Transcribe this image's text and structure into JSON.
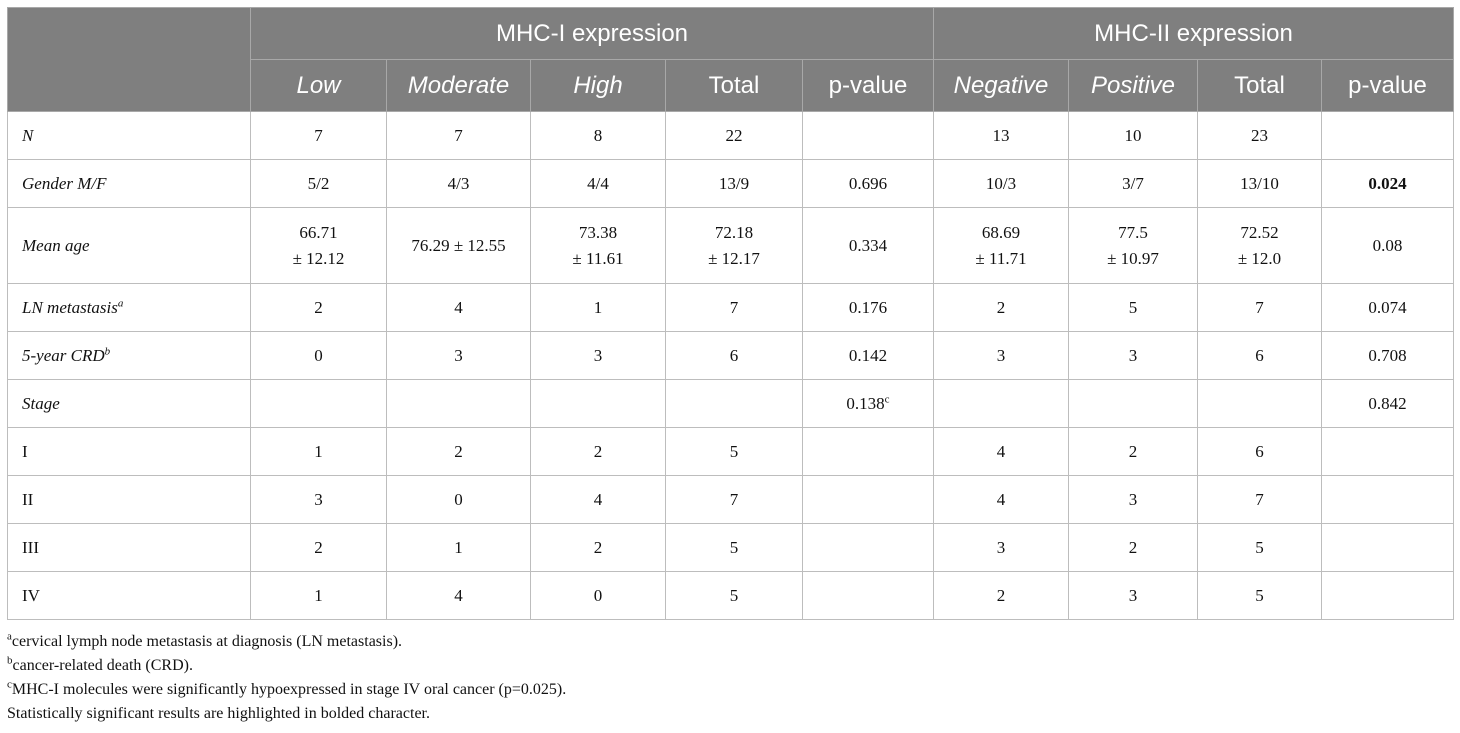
{
  "header": {
    "group1": "MHC-I expression",
    "group2": "MHC-II expression",
    "sub": [
      "Low",
      "Moderate",
      "High",
      "Total",
      "p-value",
      "Negative",
      "Positive",
      "Total",
      "p-value"
    ]
  },
  "rows": [
    {
      "label": "N",
      "sup": "",
      "italic": true,
      "cells": [
        "7",
        "7",
        "8",
        "22",
        "",
        "13",
        "10",
        "23",
        ""
      ]
    },
    {
      "label": "Gender M/F",
      "sup": "",
      "italic": true,
      "cells": [
        "5/2",
        "4/3",
        "4/4",
        "13/9",
        "0.696",
        "10/3",
        "3/7",
        "13/10",
        "0.024"
      ]
    },
    {
      "label": "Mean age",
      "sup": "",
      "italic": true,
      "cells_line1": [
        "66.71",
        "76.29 ± 12.55",
        "73.38",
        "72.18",
        "0.334",
        "68.69",
        "77.5",
        "72.52",
        "0.08"
      ],
      "cells_line2": [
        "± 12.12",
        "",
        "± 11.61",
        "± 12.17",
        "",
        "± 11.71",
        "± 10.97",
        "± 12.0",
        ""
      ]
    },
    {
      "label": "LN metastasis",
      "sup": "a",
      "italic": true,
      "cells": [
        "2",
        "4",
        "1",
        "7",
        "0.176",
        "2",
        "5",
        "7",
        "0.074"
      ]
    },
    {
      "label": "5-year CRD",
      "sup": "b",
      "italic": true,
      "cells": [
        "0",
        "3",
        "3",
        "6",
        "0.142",
        "3",
        "3",
        "6",
        "0.708"
      ]
    },
    {
      "label": "Stage",
      "sup": "",
      "italic": true,
      "cells": [
        "",
        "",
        "",
        "",
        "0.138",
        "",
        "",
        "",
        "0.842"
      ],
      "pval1_sup": "c"
    },
    {
      "label": "I",
      "sup": "",
      "italic": false,
      "cells": [
        "1",
        "2",
        "2",
        "5",
        "",
        "4",
        "2",
        "6",
        ""
      ]
    },
    {
      "label": "II",
      "sup": "",
      "italic": false,
      "cells": [
        "3",
        "0",
        "4",
        "7",
        "",
        "4",
        "3",
        "7",
        ""
      ]
    },
    {
      "label": "III",
      "sup": "",
      "italic": false,
      "cells": [
        "2",
        "1",
        "2",
        "5",
        "",
        "3",
        "2",
        "5",
        ""
      ]
    },
    {
      "label": "IV",
      "sup": "",
      "italic": false,
      "cells": [
        "1",
        "4",
        "0",
        "5",
        "",
        "2",
        "3",
        "5",
        ""
      ]
    }
  ],
  "notes": [
    {
      "sup": "a",
      "text": "cervical lymph node metastasis at diagnosis (LN metastasis)."
    },
    {
      "sup": "b",
      "text": "cancer-related death (CRD)."
    },
    {
      "sup": "c",
      "text": "MHC-I molecules were significantly hypoexpressed in stage IV oral cancer (p=0.025)."
    },
    {
      "sup": "",
      "text": "Statistically significant results are highlighted in bolded character."
    }
  ]
}
